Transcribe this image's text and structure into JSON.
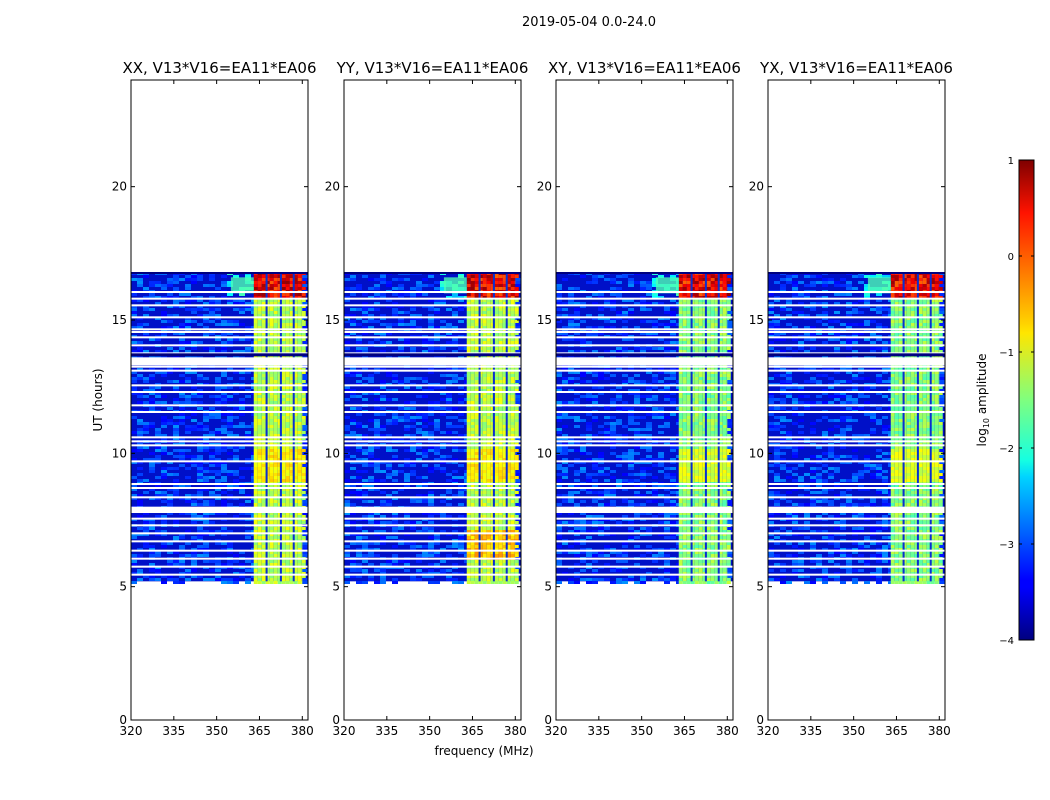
{
  "figure": {
    "suptitle": "2019-05-04 0.0-24.0"
  },
  "chart_data": {
    "type": "heatmap",
    "xlabel": "frequency (MHz)",
    "ylabel": "UT (hours)",
    "xlim": [
      320,
      382
    ],
    "ylim": [
      0,
      24
    ],
    "xticks": [
      320,
      335,
      350,
      365,
      380
    ],
    "yticks": [
      0,
      5,
      10,
      15,
      20
    ],
    "data_extent_hours": [
      5.2,
      16.8
    ],
    "rfi_band_mhz": [
      363,
      380
    ],
    "rfi_channel_gaps_mhz": [
      367.5,
      372.5,
      377
    ],
    "flagged_rows_hours": [
      5.45,
      5.75,
      6.05,
      6.35,
      6.7,
      7.0,
      7.3,
      7.55,
      7.8,
      8.35,
      8.7,
      8.85,
      9.7,
      10.3,
      10.45,
      10.6,
      11.55,
      11.8,
      12.3,
      12.55,
      13.1,
      13.25,
      13.55,
      13.75,
      14.05,
      14.35,
      14.55,
      14.65,
      15.1,
      15.55,
      15.8,
      16.05
    ],
    "flagged_bands_hours": [
      [
        7.8,
        8.0
      ],
      [
        13.3,
        13.6
      ]
    ],
    "panels": [
      {
        "title": "XX, V13*V16=EA11*EA06"
      },
      {
        "title": "YY, V13*V16=EA11*EA06"
      },
      {
        "title": "XY, V13*V16=EA11*EA06"
      },
      {
        "title": "YX, V13*V16=EA11*EA06"
      }
    ],
    "colorbar": {
      "label": "log",
      "label_sub": "10",
      "label_rest": " amplitude",
      "range": [
        -4,
        1
      ],
      "ticks": [
        "1",
        "0",
        "−1",
        "−2",
        "−3",
        "−4"
      ],
      "colormap": "jet"
    }
  }
}
